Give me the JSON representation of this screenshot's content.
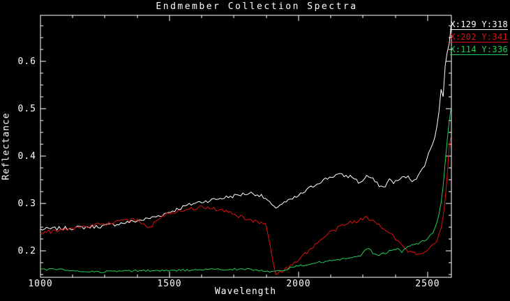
{
  "title": "Endmember Collection Spectra",
  "axes": {
    "xlabel": "Wavelength",
    "ylabel": "Reflectance",
    "x_ticks": [
      1000,
      1500,
      2000,
      2500
    ],
    "y_ticks": [
      0.2,
      0.3,
      0.4,
      0.5,
      0.6
    ],
    "x_minor_step": 125,
    "y_minor_step": 0.025,
    "x_range": [
      1000,
      2592
    ],
    "y_range": [
      0.144,
      0.697
    ],
    "frame_color": "#ffffff",
    "background_color": "#000000"
  },
  "legend": [
    {
      "label": "X:129 Y:318",
      "color": "#ffffff"
    },
    {
      "label": "X:202 Y:341",
      "color": "#dd1111"
    },
    {
      "label": "X:114 Y:336",
      "color": "#22cc55"
    }
  ],
  "chart_data": {
    "type": "line",
    "title": "Endmember Collection Spectra",
    "xlabel": "Wavelength",
    "ylabel": "Reflectance",
    "xlim": [
      1000,
      2592
    ],
    "ylim": [
      0.144,
      0.697
    ],
    "grid": false,
    "legend_position": "top-right",
    "series": [
      {
        "name": "X:129 Y:318",
        "color": "#ffffff",
        "noise": 0.004,
        "points": [
          [
            1000,
            0.245
          ],
          [
            1060,
            0.247
          ],
          [
            1120,
            0.248
          ],
          [
            1180,
            0.25
          ],
          [
            1240,
            0.252
          ],
          [
            1300,
            0.257
          ],
          [
            1360,
            0.262
          ],
          [
            1410,
            0.267
          ],
          [
            1460,
            0.274
          ],
          [
            1510,
            0.284
          ],
          [
            1560,
            0.294
          ],
          [
            1600,
            0.301
          ],
          [
            1650,
            0.306
          ],
          [
            1700,
            0.311
          ],
          [
            1750,
            0.316
          ],
          [
            1790,
            0.32
          ],
          [
            1820,
            0.322
          ],
          [
            1850,
            0.317
          ],
          [
            1875,
            0.309
          ],
          [
            1905,
            0.29
          ],
          [
            1935,
            0.299
          ],
          [
            1965,
            0.306
          ],
          [
            2000,
            0.316
          ],
          [
            2040,
            0.331
          ],
          [
            2080,
            0.345
          ],
          [
            2120,
            0.355
          ],
          [
            2150,
            0.361
          ],
          [
            2180,
            0.358
          ],
          [
            2210,
            0.356
          ],
          [
            2240,
            0.342
          ],
          [
            2262,
            0.359
          ],
          [
            2285,
            0.352
          ],
          [
            2305,
            0.341
          ],
          [
            2330,
            0.333
          ],
          [
            2352,
            0.35
          ],
          [
            2372,
            0.344
          ],
          [
            2395,
            0.352
          ],
          [
            2418,
            0.357
          ],
          [
            2440,
            0.349
          ],
          [
            2465,
            0.358
          ],
          [
            2488,
            0.382
          ],
          [
            2508,
            0.41
          ],
          [
            2528,
            0.442
          ],
          [
            2543,
            0.487
          ],
          [
            2552,
            0.54
          ],
          [
            2559,
            0.515
          ],
          [
            2566,
            0.598
          ],
          [
            2572,
            0.572
          ],
          [
            2578,
            0.648
          ],
          [
            2583,
            0.622
          ],
          [
            2588,
            0.688
          ],
          [
            2590,
            0.672
          ]
        ]
      },
      {
        "name": "X:202 Y:341",
        "color": "#dd1111",
        "noise": 0.004,
        "points": [
          [
            1000,
            0.238
          ],
          [
            1060,
            0.242
          ],
          [
            1120,
            0.247
          ],
          [
            1180,
            0.252
          ],
          [
            1240,
            0.256
          ],
          [
            1300,
            0.261
          ],
          [
            1345,
            0.264
          ],
          [
            1380,
            0.266
          ],
          [
            1400,
            0.256
          ],
          [
            1415,
            0.247
          ],
          [
            1432,
            0.252
          ],
          [
            1458,
            0.27
          ],
          [
            1488,
            0.277
          ],
          [
            1520,
            0.283
          ],
          [
            1560,
            0.288
          ],
          [
            1600,
            0.29
          ],
          [
            1640,
            0.292
          ],
          [
            1680,
            0.288
          ],
          [
            1720,
            0.283
          ],
          [
            1760,
            0.275
          ],
          [
            1800,
            0.266
          ],
          [
            1830,
            0.262
          ],
          [
            1862,
            0.261
          ],
          [
            1877,
            0.25
          ],
          [
            1890,
            0.213
          ],
          [
            1900,
            0.178
          ],
          [
            1913,
            0.15
          ],
          [
            1928,
            0.155
          ],
          [
            1948,
            0.161
          ],
          [
            1972,
            0.168
          ],
          [
            2002,
            0.184
          ],
          [
            2032,
            0.197
          ],
          [
            2062,
            0.211
          ],
          [
            2092,
            0.226
          ],
          [
            2122,
            0.238
          ],
          [
            2160,
            0.25
          ],
          [
            2200,
            0.26
          ],
          [
            2235,
            0.264
          ],
          [
            2263,
            0.27
          ],
          [
            2290,
            0.262
          ],
          [
            2320,
            0.252
          ],
          [
            2350,
            0.241
          ],
          [
            2380,
            0.224
          ],
          [
            2408,
            0.205
          ],
          [
            2438,
            0.196
          ],
          [
            2468,
            0.19
          ],
          [
            2495,
            0.198
          ],
          [
            2515,
            0.208
          ],
          [
            2535,
            0.221
          ],
          [
            2550,
            0.24
          ],
          [
            2562,
            0.278
          ],
          [
            2570,
            0.32
          ],
          [
            2577,
            0.368
          ],
          [
            2583,
            0.412
          ],
          [
            2588,
            0.458
          ],
          [
            2590,
            0.44
          ]
        ]
      },
      {
        "name": "X:114 Y:336",
        "color": "#22cc55",
        "noise": 0.0022,
        "points": [
          [
            1000,
            0.16
          ],
          [
            1060,
            0.161
          ],
          [
            1120,
            0.158
          ],
          [
            1180,
            0.156
          ],
          [
            1250,
            0.156
          ],
          [
            1320,
            0.157
          ],
          [
            1400,
            0.158
          ],
          [
            1480,
            0.158
          ],
          [
            1560,
            0.159
          ],
          [
            1640,
            0.16
          ],
          [
            1720,
            0.161
          ],
          [
            1800,
            0.161
          ],
          [
            1858,
            0.158
          ],
          [
            1910,
            0.156
          ],
          [
            1950,
            0.161
          ],
          [
            2000,
            0.168
          ],
          [
            2050,
            0.173
          ],
          [
            2100,
            0.177
          ],
          [
            2150,
            0.181
          ],
          [
            2200,
            0.185
          ],
          [
            2240,
            0.188
          ],
          [
            2268,
            0.207
          ],
          [
            2288,
            0.195
          ],
          [
            2310,
            0.19
          ],
          [
            2335,
            0.195
          ],
          [
            2360,
            0.201
          ],
          [
            2383,
            0.205
          ],
          [
            2400,
            0.198
          ],
          [
            2420,
            0.207
          ],
          [
            2442,
            0.212
          ],
          [
            2465,
            0.216
          ],
          [
            2485,
            0.221
          ],
          [
            2505,
            0.228
          ],
          [
            2522,
            0.24
          ],
          [
            2538,
            0.262
          ],
          [
            2550,
            0.295
          ],
          [
            2560,
            0.335
          ],
          [
            2568,
            0.385
          ],
          [
            2575,
            0.43
          ],
          [
            2581,
            0.46
          ],
          [
            2586,
            0.48
          ],
          [
            2590,
            0.5
          ]
        ]
      }
    ]
  }
}
